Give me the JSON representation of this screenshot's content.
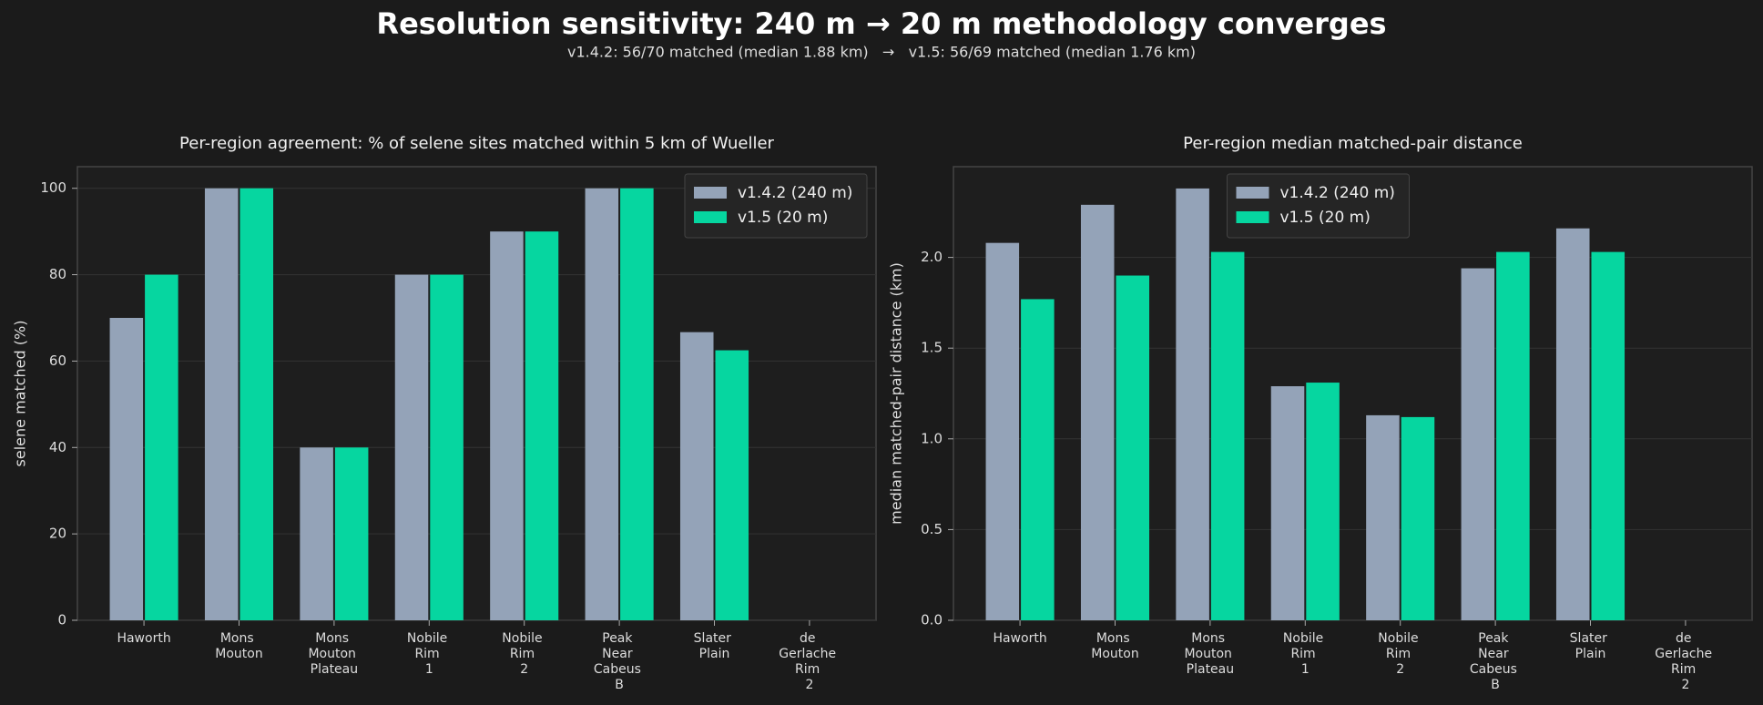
{
  "title": "Resolution sensitivity: 240 m → 20 m methodology converges",
  "subtitle": "v1.4.2: 56/70 matched (median 1.88 km)   →   v1.5: 56/69 matched (median 1.76 km)",
  "chart_data": [
    {
      "type": "bar",
      "title": "Per-region agreement: % of selene sites matched within 5 km of Wueller",
      "ylabel": "selene matched (%)",
      "categories": [
        "Haworth",
        "Mons Mouton",
        "Mons Mouton Plateau",
        "Nobile Rim 1",
        "Nobile Rim 2",
        "Peak Near Cabeus B",
        "Slater Plain",
        "de Gerlache Rim 2"
      ],
      "series": [
        {
          "name": "v1.4.2 (240 m)",
          "color": "#94a3b8",
          "values": [
            70,
            100,
            40,
            80,
            90,
            100,
            66.7,
            null
          ]
        },
        {
          "name": "v1.5 (20 m)",
          "color": "#06d6a0",
          "values": [
            80,
            100,
            40,
            80,
            90,
            100,
            62.5,
            null
          ]
        }
      ],
      "ylim": [
        0,
        105
      ],
      "yticks": [
        0,
        20,
        40,
        60,
        80,
        100
      ],
      "grid": true,
      "legend": "upper right"
    },
    {
      "type": "bar",
      "title": "Per-region median matched-pair distance",
      "ylabel": "median matched-pair distance (km)",
      "categories": [
        "Haworth",
        "Mons Mouton",
        "Mons Mouton Plateau",
        "Nobile Rim 1",
        "Nobile Rim 2",
        "Peak Near Cabeus B",
        "Slater Plain",
        "de Gerlache Rim 2"
      ],
      "series": [
        {
          "name": "v1.4.2 (240 m)",
          "color": "#94a3b8",
          "values": [
            2.08,
            2.29,
            2.38,
            1.29,
            1.13,
            1.94,
            2.16,
            null
          ]
        },
        {
          "name": "v1.5 (20 m)",
          "color": "#06d6a0",
          "values": [
            1.77,
            1.9,
            2.03,
            1.31,
            1.12,
            2.03,
            2.03,
            null
          ]
        }
      ],
      "ylim": [
        0,
        2.5
      ],
      "yticks": [
        {
          "value": 0,
          "label": "0.0"
        },
        0.5,
        {
          "value": 1,
          "label": "1.0"
        },
        1.5,
        {
          "value": 2,
          "label": "2.0"
        }
      ],
      "grid": true,
      "legend": "upper center"
    }
  ]
}
